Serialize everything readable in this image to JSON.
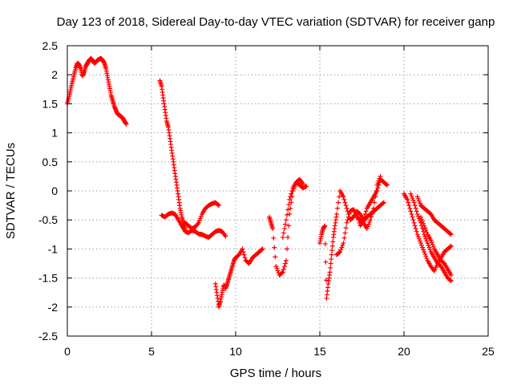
{
  "chart_data": {
    "type": "scatter",
    "title": "Day 123 of 2018, Sidereal Day-to-day VTEC variation (SDTVAR) for receiver ganp",
    "xlabel": "GPS time / hours",
    "ylabel": "SDTVAR / TECUs",
    "xlim": [
      0,
      25
    ],
    "ylim": [
      -2.5,
      2.5
    ],
    "xticks": [
      0,
      5,
      10,
      15,
      20,
      25
    ],
    "yticks": [
      -2.5,
      -2,
      -1.5,
      -1,
      -0.5,
      0,
      0.5,
      1,
      1.5,
      2,
      2.5
    ],
    "xtick_labels": [
      "0",
      "5",
      "10",
      "15",
      "20",
      "25"
    ],
    "ytick_labels": [
      "-2.5",
      "-2",
      "-1.5",
      "-1",
      "-0.5",
      "0",
      "0.5",
      "1",
      "1.5",
      "2",
      "2.5"
    ],
    "grid": true,
    "marker": "+",
    "color": "#ff0000",
    "series": [
      {
        "name": "s1",
        "x": [
          0.0,
          0.1,
          0.2,
          0.3,
          0.4,
          0.5,
          0.6,
          0.7,
          0.8,
          0.9,
          1.0,
          1.1,
          1.2,
          1.3,
          1.4,
          1.5,
          1.6,
          1.7,
          1.8,
          1.9,
          2.0,
          2.1,
          2.2,
          2.3,
          2.4,
          2.5,
          2.6,
          2.7,
          2.8,
          2.9,
          3.0,
          3.1,
          3.2,
          3.3,
          3.4,
          3.5
        ],
        "y": [
          1.5,
          1.62,
          1.75,
          1.88,
          2.0,
          2.12,
          2.2,
          2.18,
          2.1,
          1.98,
          2.05,
          2.15,
          2.2,
          2.25,
          2.28,
          2.25,
          2.2,
          2.22,
          2.25,
          2.27,
          2.28,
          2.25,
          2.2,
          2.1,
          1.95,
          1.8,
          1.65,
          1.55,
          1.45,
          1.38,
          1.32,
          1.3,
          1.28,
          1.25,
          1.2,
          1.15
        ]
      },
      {
        "name": "s2",
        "x": [
          5.5,
          5.6,
          5.7,
          5.8,
          5.9,
          6.0,
          6.1,
          6.2,
          6.3,
          6.4,
          6.5,
          6.6,
          6.7,
          6.8,
          6.9,
          7.0
        ],
        "y": [
          1.9,
          1.8,
          1.6,
          1.4,
          1.2,
          1.1,
          0.9,
          0.7,
          0.5,
          0.3,
          0.1,
          -0.1,
          -0.3,
          -0.45,
          -0.55,
          -0.65
        ]
      },
      {
        "name": "s3",
        "x": [
          5.6,
          5.8,
          6.0,
          6.2,
          6.4,
          6.6,
          6.8,
          7.0,
          7.2,
          7.4,
          7.6,
          7.8,
          8.0,
          8.2,
          8.4,
          8.6,
          8.8,
          9.0
        ],
        "y": [
          -0.42,
          -0.45,
          -0.4,
          -0.38,
          -0.4,
          -0.5,
          -0.6,
          -0.55,
          -0.6,
          -0.65,
          -0.62,
          -0.55,
          -0.4,
          -0.3,
          -0.25,
          -0.22,
          -0.2,
          -0.25
        ]
      },
      {
        "name": "s4",
        "x": [
          6.8,
          7.0,
          7.2,
          7.4,
          7.6,
          7.8,
          8.0,
          8.2,
          8.4,
          8.6,
          8.8,
          9.0,
          9.2,
          9.4
        ],
        "y": [
          -0.6,
          -0.7,
          -0.72,
          -0.68,
          -0.7,
          -0.74,
          -0.75,
          -0.78,
          -0.8,
          -0.75,
          -0.7,
          -0.68,
          -0.7,
          -0.78
        ]
      },
      {
        "name": "s5",
        "x": [
          8.8,
          8.9,
          9.0,
          9.1,
          9.2,
          9.3,
          9.4,
          9.5,
          9.6,
          9.7,
          9.8,
          9.9,
          10.0,
          10.2,
          10.4,
          10.6,
          10.8,
          11.0,
          11.2,
          11.4,
          11.6
        ],
        "y": [
          -1.6,
          -1.8,
          -2.0,
          -1.9,
          -1.75,
          -1.62,
          -1.68,
          -1.6,
          -1.5,
          -1.4,
          -1.3,
          -1.2,
          -1.15,
          -1.1,
          -1.0,
          -1.2,
          -1.25,
          -1.15,
          -1.1,
          -1.05,
          -1.0
        ]
      },
      {
        "name": "s6",
        "x": [
          12.0,
          12.1,
          12.2,
          12.4,
          12.6,
          12.8,
          13.0,
          13.2,
          13.4,
          13.6,
          13.8,
          14.0
        ],
        "y": [
          -0.45,
          -0.55,
          -0.65,
          -1.3,
          -1.45,
          -1.4,
          -1.2,
          -0.4,
          0.0,
          0.15,
          0.2,
          0.12
        ]
      },
      {
        "name": "s7",
        "x": [
          12.8,
          13.0,
          13.2,
          13.4,
          13.6,
          13.8,
          14.0,
          14.2
        ],
        "y": [
          -0.8,
          -0.5,
          -0.15,
          0.05,
          0.15,
          0.1,
          0.05,
          0.08
        ]
      },
      {
        "name": "s8",
        "x": [
          15.0,
          15.1,
          15.2,
          15.3,
          15.4,
          15.5,
          15.6,
          15.7,
          15.8,
          15.9,
          16.0,
          16.2,
          16.4,
          16.6,
          16.8,
          17.0,
          17.2,
          17.4,
          17.6,
          17.8,
          18.0,
          18.2,
          18.4,
          18.6,
          18.8,
          19.0
        ],
        "y": [
          -0.9,
          -0.75,
          -0.65,
          -0.6,
          -1.85,
          -1.6,
          -1.4,
          -1.1,
          -0.8,
          -0.6,
          -0.4,
          0.0,
          -0.1,
          -0.3,
          -0.5,
          -0.45,
          -0.35,
          -0.4,
          -0.5,
          -0.3,
          -0.2,
          -0.1,
          0.0,
          0.2,
          0.15,
          0.1
        ]
      },
      {
        "name": "s9",
        "x": [
          16.0,
          16.2,
          16.4,
          16.6,
          16.8,
          17.0,
          17.2,
          17.4,
          17.6,
          17.8,
          18.0,
          18.2,
          18.4,
          18.6,
          18.8
        ],
        "y": [
          -1.1,
          -1.05,
          -0.9,
          -0.55,
          -0.35,
          -0.32,
          -0.4,
          -0.6,
          -0.52,
          -0.45,
          -0.4,
          -0.35,
          -0.3,
          -0.25,
          -0.2
        ]
      },
      {
        "name": "s10",
        "x": [
          17.2,
          17.4,
          17.6,
          17.8,
          18.0,
          18.2,
          18.4,
          18.6
        ],
        "y": [
          -0.45,
          -0.5,
          -0.55,
          -0.65,
          -0.5,
          -0.3,
          0.1,
          0.25
        ]
      },
      {
        "name": "s11",
        "x": [
          20.0,
          20.2,
          20.4,
          20.6,
          20.8,
          21.0,
          21.2,
          21.4,
          21.6,
          21.8,
          22.0,
          22.2,
          22.4,
          22.6,
          22.8
        ],
        "y": [
          -0.05,
          -0.15,
          -0.35,
          -0.55,
          -0.75,
          -0.9,
          -1.05,
          -1.2,
          -1.3,
          -1.38,
          -1.25,
          -1.15,
          -1.05,
          -1.0,
          -0.95
        ]
      },
      {
        "name": "s12",
        "x": [
          20.4,
          20.6,
          20.8,
          21.0,
          21.2,
          21.4,
          21.6,
          21.8,
          22.0,
          22.2,
          22.4,
          22.6,
          22.8
        ],
        "y": [
          -0.05,
          -0.2,
          -0.4,
          -0.55,
          -0.75,
          -0.9,
          -1.05,
          -1.15,
          -1.25,
          -1.3,
          -1.4,
          -1.5,
          -1.55
        ]
      },
      {
        "name": "s13",
        "x": [
          20.8,
          21.0,
          21.2,
          21.4,
          21.6,
          21.8,
          22.0,
          22.2,
          22.4,
          22.6,
          22.8
        ],
        "y": [
          -0.1,
          -0.25,
          -0.3,
          -0.35,
          -0.4,
          -0.5,
          -0.55,
          -0.6,
          -0.65,
          -0.7,
          -0.75
        ]
      },
      {
        "name": "s14",
        "x": [
          21.0,
          21.2,
          21.4,
          21.6,
          21.8,
          22.0,
          22.2,
          22.4,
          22.6,
          22.8
        ],
        "y": [
          -0.45,
          -0.6,
          -0.75,
          -0.85,
          -1.0,
          -1.1,
          -1.2,
          -1.25,
          -1.35,
          -1.45
        ]
      }
    ]
  }
}
